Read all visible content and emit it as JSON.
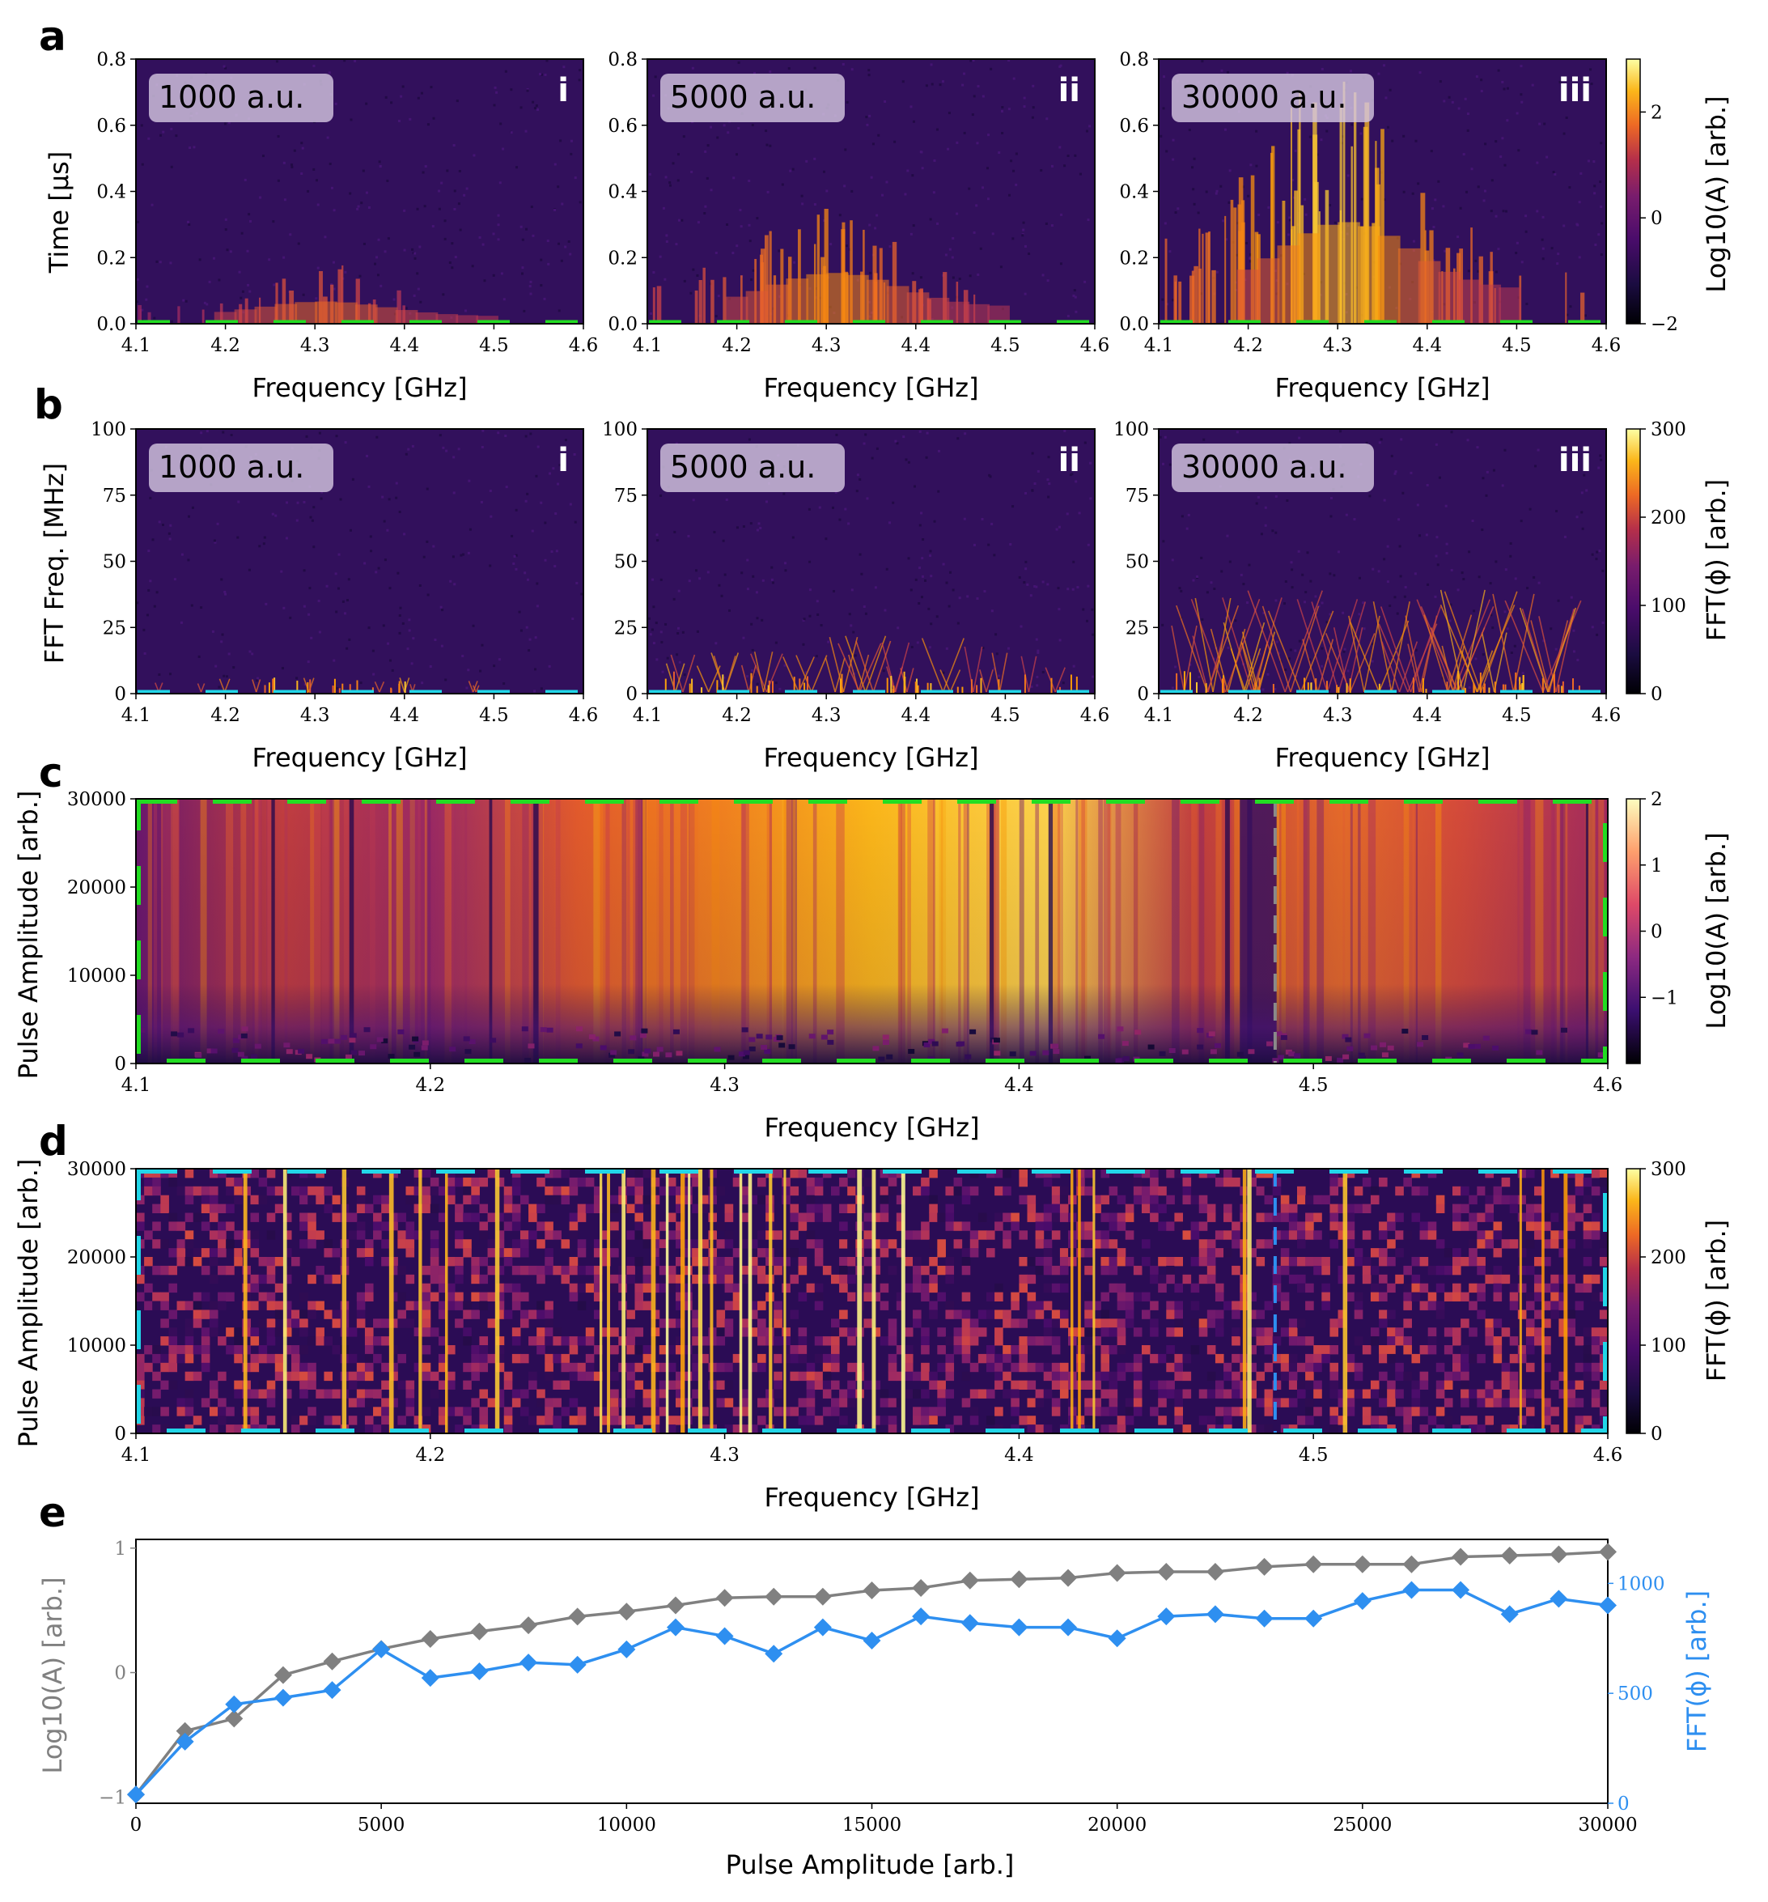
{
  "colors": {
    "green_dash": "#22dd22",
    "cyan_dash": "#22d6e8",
    "grey_series": "#808080",
    "blue_series": "#2e8ff0",
    "inferno_dark": "#000004",
    "inferno_bright": "#fcffa4"
  },
  "figure": {
    "panels": {
      "a": {
        "letter": "a"
      },
      "b": {
        "letter": "b"
      },
      "c": {
        "letter": "c"
      },
      "d": {
        "letter": "d"
      },
      "e": {
        "letter": "e"
      }
    },
    "row_a": {
      "ylabel": "Time [$\\mu$s]",
      "ylabel_display": "Time [μs]",
      "xlabel": "Frequency [GHz]",
      "colorbar_label": "Log10(A) [arb.]",
      "subplots": [
        {
          "box": "1000 a.u.",
          "roman": "i"
        },
        {
          "box": "5000 a.u.",
          "roman": "ii"
        },
        {
          "box": "30000 a.u.",
          "roman": "iii"
        }
      ]
    },
    "row_b": {
      "ylabel": "FFT Freq. [MHz]",
      "xlabel": "Frequency [GHz]",
      "colorbar_label": "FFT(ϕ) [arb.]",
      "subplots": [
        {
          "box": "1000 a.u.",
          "roman": "i"
        },
        {
          "box": "5000 a.u.",
          "roman": "ii"
        },
        {
          "box": "30000 a.u.",
          "roman": "iii"
        }
      ]
    },
    "row_c": {
      "ylabel": "Pulse Amplitude [arb.]",
      "xlabel": "Frequency [GHz]",
      "colorbar_label": "Log10(A) [arb.]"
    },
    "row_d": {
      "ylabel": "Pulse Amplitude [arb.]",
      "xlabel": "Frequency [GHz]",
      "colorbar_label": "FFT(ϕ) [arb.]"
    },
    "row_e": {
      "xlabel": "Pulse Amplitude [arb.]",
      "ylabel_left": "Log10(A) [arb.]",
      "ylabel_right": "FFT(ϕ) [arb.]"
    }
  },
  "chart_data": [
    {
      "id": "a-i",
      "type": "heatmap",
      "xlabel": "Frequency [GHz]",
      "ylabel": "Time [μs]",
      "xlim": [
        4.1,
        4.6
      ],
      "ylim": [
        0.0,
        0.8
      ],
      "xticks": [
        "4.1",
        "4.2",
        "4.3",
        "4.4",
        "4.5",
        "4.6"
      ],
      "yticks": [
        "0.0",
        "0.2",
        "0.4",
        "0.6",
        "0.8"
      ],
      "colorbar": {
        "label": "Log10(A) [arb.]",
        "range": [
          -2,
          3
        ],
        "ticks": [
          "−2",
          "0",
          "2"
        ]
      },
      "annotation": "1000 a.u.",
      "roman": "i"
    },
    {
      "id": "a-ii",
      "type": "heatmap",
      "xlabel": "Frequency [GHz]",
      "xlim": [
        4.1,
        4.6
      ],
      "ylim": [
        0.0,
        0.8
      ],
      "xticks": [
        "4.1",
        "4.2",
        "4.3",
        "4.4",
        "4.5",
        "4.6"
      ],
      "yticks": [
        "0.0",
        "0.2",
        "0.4",
        "0.6",
        "0.8"
      ],
      "annotation": "5000 a.u.",
      "roman": "ii"
    },
    {
      "id": "a-iii",
      "type": "heatmap",
      "xlabel": "Frequency [GHz]",
      "xlim": [
        4.1,
        4.6
      ],
      "ylim": [
        0.0,
        0.8
      ],
      "xticks": [
        "4.1",
        "4.2",
        "4.3",
        "4.4",
        "4.5",
        "4.6"
      ],
      "yticks": [
        "0.0",
        "0.2",
        "0.4",
        "0.6",
        "0.8"
      ],
      "annotation": "30000 a.u.",
      "roman": "iii"
    },
    {
      "id": "b-i",
      "type": "heatmap",
      "xlabel": "Frequency [GHz]",
      "ylabel": "FFT Freq. [MHz]",
      "xlim": [
        4.1,
        4.6
      ],
      "ylim": [
        0,
        100
      ],
      "xticks": [
        "4.1",
        "4.2",
        "4.3",
        "4.4",
        "4.5",
        "4.6"
      ],
      "yticks": [
        "0",
        "25",
        "50",
        "75",
        "100"
      ],
      "colorbar": {
        "label": "FFT(ϕ) [arb.]",
        "range": [
          0,
          300
        ],
        "ticks": [
          "0",
          "100",
          "200",
          "300"
        ]
      },
      "annotation": "1000 a.u.",
      "roman": "i"
    },
    {
      "id": "b-ii",
      "type": "heatmap",
      "xlabel": "Frequency [GHz]",
      "xlim": [
        4.1,
        4.6
      ],
      "ylim": [
        0,
        100
      ],
      "xticks": [
        "4.1",
        "4.2",
        "4.3",
        "4.4",
        "4.5",
        "4.6"
      ],
      "yticks": [
        "0",
        "25",
        "50",
        "75",
        "100"
      ],
      "annotation": "5000 a.u.",
      "roman": "ii"
    },
    {
      "id": "b-iii",
      "type": "heatmap",
      "xlabel": "Frequency [GHz]",
      "xlim": [
        4.1,
        4.6
      ],
      "ylim": [
        0,
        100
      ],
      "xticks": [
        "4.1",
        "4.2",
        "4.3",
        "4.4",
        "4.5",
        "4.6"
      ],
      "yticks": [
        "0",
        "25",
        "50",
        "75",
        "100"
      ],
      "annotation": "30000 a.u.",
      "roman": "iii"
    },
    {
      "id": "c",
      "type": "heatmap",
      "xlabel": "Frequency [GHz]",
      "ylabel": "Pulse Amplitude [arb.]",
      "xlim": [
        4.1,
        4.6
      ],
      "ylim": [
        0,
        30000
      ],
      "xticks": [
        "4.1",
        "4.2",
        "4.3",
        "4.4",
        "4.5",
        "4.6"
      ],
      "yticks": [
        "0",
        "10000",
        "20000",
        "30000"
      ],
      "colorbar": {
        "label": "Log10(A) [arb.]",
        "range": [
          -2,
          2
        ],
        "ticks": [
          "−1",
          "0",
          "1",
          "2"
        ]
      },
      "marker_line_ghz": 4.487
    },
    {
      "id": "d",
      "type": "heatmap",
      "xlabel": "Frequency [GHz]",
      "ylabel": "Pulse Amplitude [arb.]",
      "xlim": [
        4.1,
        4.6
      ],
      "ylim": [
        0,
        30000
      ],
      "xticks": [
        "4.1",
        "4.2",
        "4.3",
        "4.4",
        "4.5",
        "4.6"
      ],
      "yticks": [
        "0",
        "10000",
        "20000",
        "30000"
      ],
      "colorbar": {
        "label": "FFT(ϕ) [arb.]",
        "range": [
          0,
          300
        ],
        "ticks": [
          "0",
          "100",
          "200",
          "300"
        ]
      },
      "marker_line_ghz": 4.487
    },
    {
      "id": "e",
      "type": "line",
      "xlabel": "Pulse Amplitude [arb.]",
      "xlim": [
        0,
        30000
      ],
      "xticks": [
        "0",
        "5000",
        "10000",
        "15000",
        "20000",
        "25000",
        "30000"
      ],
      "x": [
        0,
        1000,
        2000,
        3000,
        4000,
        5000,
        6000,
        7000,
        8000,
        9000,
        10000,
        11000,
        12000,
        13000,
        14000,
        15000,
        16000,
        17000,
        18000,
        19000,
        20000,
        21000,
        22000,
        23000,
        24000,
        25000,
        26000,
        27000,
        28000,
        29000,
        30000
      ],
      "series": [
        {
          "name": "Log10(A) [arb.]",
          "axis": "left",
          "color": "#808080",
          "marker": "diamond",
          "ylim": [
            -1.05,
            1.07
          ],
          "yticks": [
            "−1",
            "0",
            "1"
          ],
          "values": [
            -0.98,
            -0.47,
            -0.37,
            -0.02,
            0.09,
            0.19,
            0.27,
            0.33,
            0.38,
            0.45,
            0.49,
            0.54,
            0.6,
            0.61,
            0.61,
            0.66,
            0.68,
            0.74,
            0.75,
            0.76,
            0.8,
            0.81,
            0.81,
            0.85,
            0.87,
            0.87,
            0.87,
            0.93,
            0.94,
            0.95,
            0.97
          ]
        },
        {
          "name": "FFT(ϕ) [arb.]",
          "axis": "right",
          "color": "#2e8ff0",
          "marker": "diamond",
          "ylim": [
            0,
            1200
          ],
          "yticks": [
            "0",
            "500",
            "1000"
          ],
          "values": [
            40,
            280,
            450,
            480,
            515,
            700,
            570,
            600,
            640,
            630,
            700,
            800,
            760,
            680,
            800,
            740,
            850,
            820,
            800,
            800,
            750,
            850,
            860,
            840,
            840,
            920,
            970,
            970,
            860,
            930,
            900
          ]
        }
      ]
    }
  ]
}
